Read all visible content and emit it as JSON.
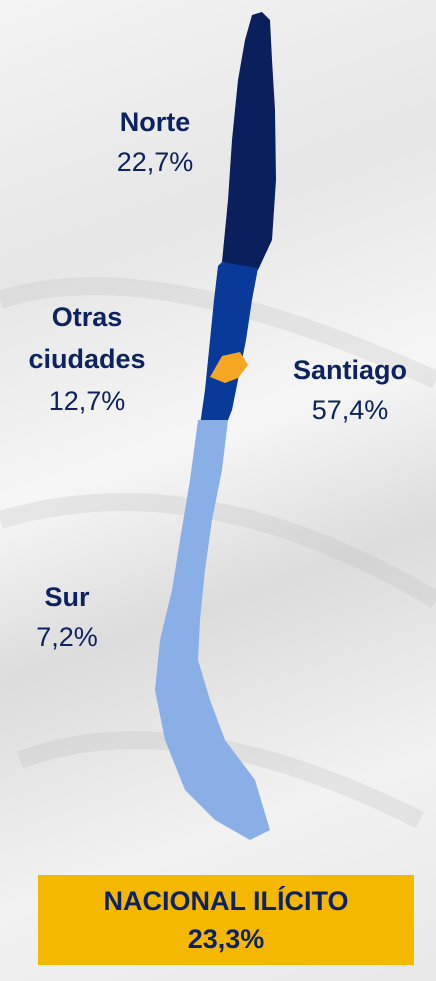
{
  "regions": [
    {
      "name": "Norte",
      "value": "22,7%"
    },
    {
      "name": "Otras ciudades",
      "value": "12,7%"
    },
    {
      "name": "Santiago",
      "value": "57,4%"
    },
    {
      "name": "Sur",
      "value": "7,2%"
    }
  ],
  "total": {
    "label": "NACIONAL ILÍCITO",
    "value": "23,3%"
  }
}
